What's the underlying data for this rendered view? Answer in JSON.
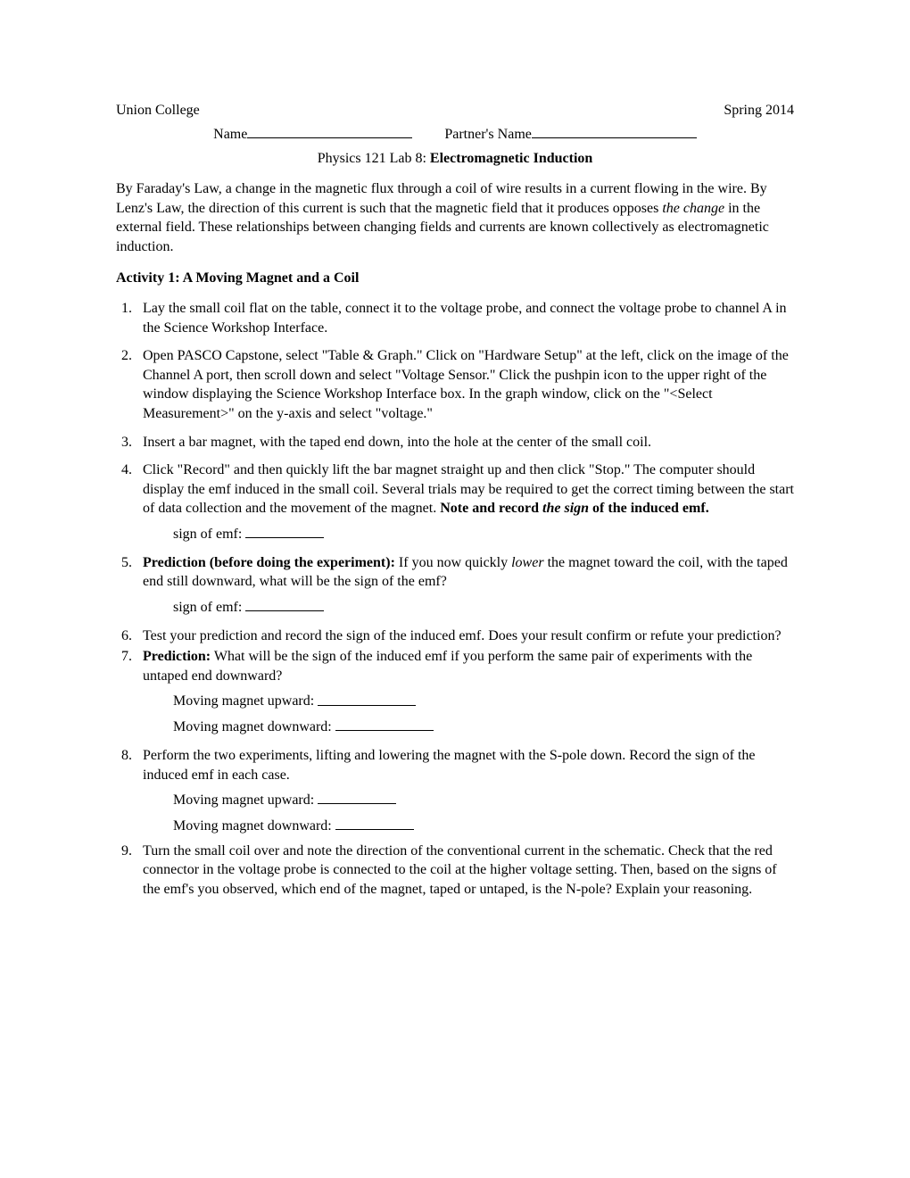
{
  "header": {
    "college": "Union College",
    "term": "Spring 2014",
    "name_label": "Name",
    "partner_label": "Partner's Name"
  },
  "title": {
    "prefix": "Physics 121 Lab 8:  ",
    "main": "Electromagnetic Induction"
  },
  "intro_parts": {
    "t1": "By Faraday's Law, a change in the magnetic flux through a coil of wire results in a current flowing in the wire.  By Lenz's Law, the direction of this current is such that the magnetic field that it produces opposes ",
    "t2_italic": "the change",
    "t3": " in the external field.  These relationships between changing fields and currents are known collectively as electromagnetic induction."
  },
  "activity_heading": "Activity 1: A Moving Magnet and a Coil",
  "items": {
    "i1": "Lay the small coil flat on the table, connect it to the voltage probe, and connect the voltage probe to channel A in the Science Workshop Interface.",
    "i2": "Open PASCO Capstone, select \"Table & Graph.\"  Click on \"Hardware Setup\" at the left, click on the image of the Channel A port, then scroll down and select \"Voltage Sensor.\"  Click the pushpin icon to the upper right of the window displaying the Science Workshop Interface box.  In the graph window, click on the \"<Select Measurement>\" on the y-axis and select \"voltage.\"",
    "i3": "Insert a bar magnet, with the taped end down, into the hole at the center of the small coil.",
    "i4_t1": "Click \"Record\" and then quickly lift the bar magnet straight up and then click \"Stop.\"  The computer should display the emf induced in the small coil.  Several trials may be required to get the correct timing between the start of data collection and the movement of the magnet.  ",
    "i4_bold1": "Note and record ",
    "i4_bold_italic": "the sign",
    "i4_bold2": " of the induced emf.",
    "i5_bold": "Prediction (before doing the experiment):",
    "i5_t1": "  If you now quickly ",
    "i5_italic": "lower",
    "i5_t2": " the magnet toward the coil, with the taped end still downward, what will be the sign of the emf?",
    "i6": "Test your prediction and record the sign of the induced emf.  Does your result confirm or refute your prediction?",
    "i7_bold": "Prediction:",
    "i7_t": " What will be the sign of the induced emf if you perform the same pair of experiments with the untaped end downward?",
    "i8": "Perform the two experiments, lifting and lowering the magnet with the S-pole down. Record the sign of the induced emf in each case.",
    "i9": "Turn the small coil over and note the direction of the conventional current in the schematic.  Check that the red connector in the voltage probe is connected to the coil at the higher voltage setting.  Then, based on the signs of the emf's you observed, which end of the magnet, taped or untaped, is the N-pole?  Explain your reasoning."
  },
  "labels": {
    "sign_of_emf": "sign of emf:  ",
    "moving_up": "Moving magnet upward:  ",
    "moving_down": "Moving magnet downward:  "
  }
}
